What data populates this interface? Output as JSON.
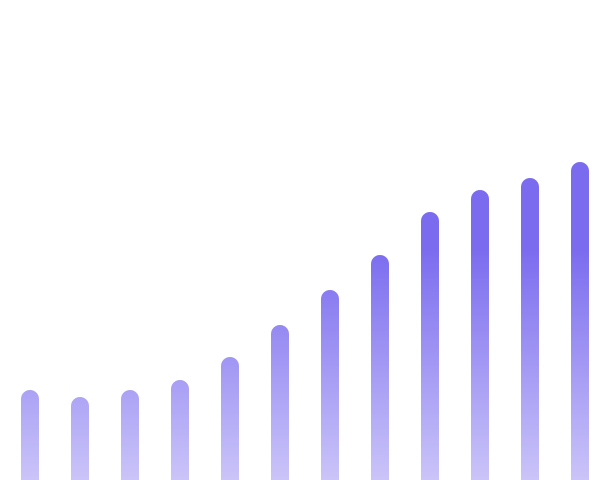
{
  "chart_data": {
    "type": "bar",
    "values": [
      90,
      83,
      90,
      100,
      123,
      155,
      190,
      225,
      268,
      290,
      302,
      318
    ],
    "color": "#7b6cef",
    "ylim": [
      0,
      480
    ]
  }
}
